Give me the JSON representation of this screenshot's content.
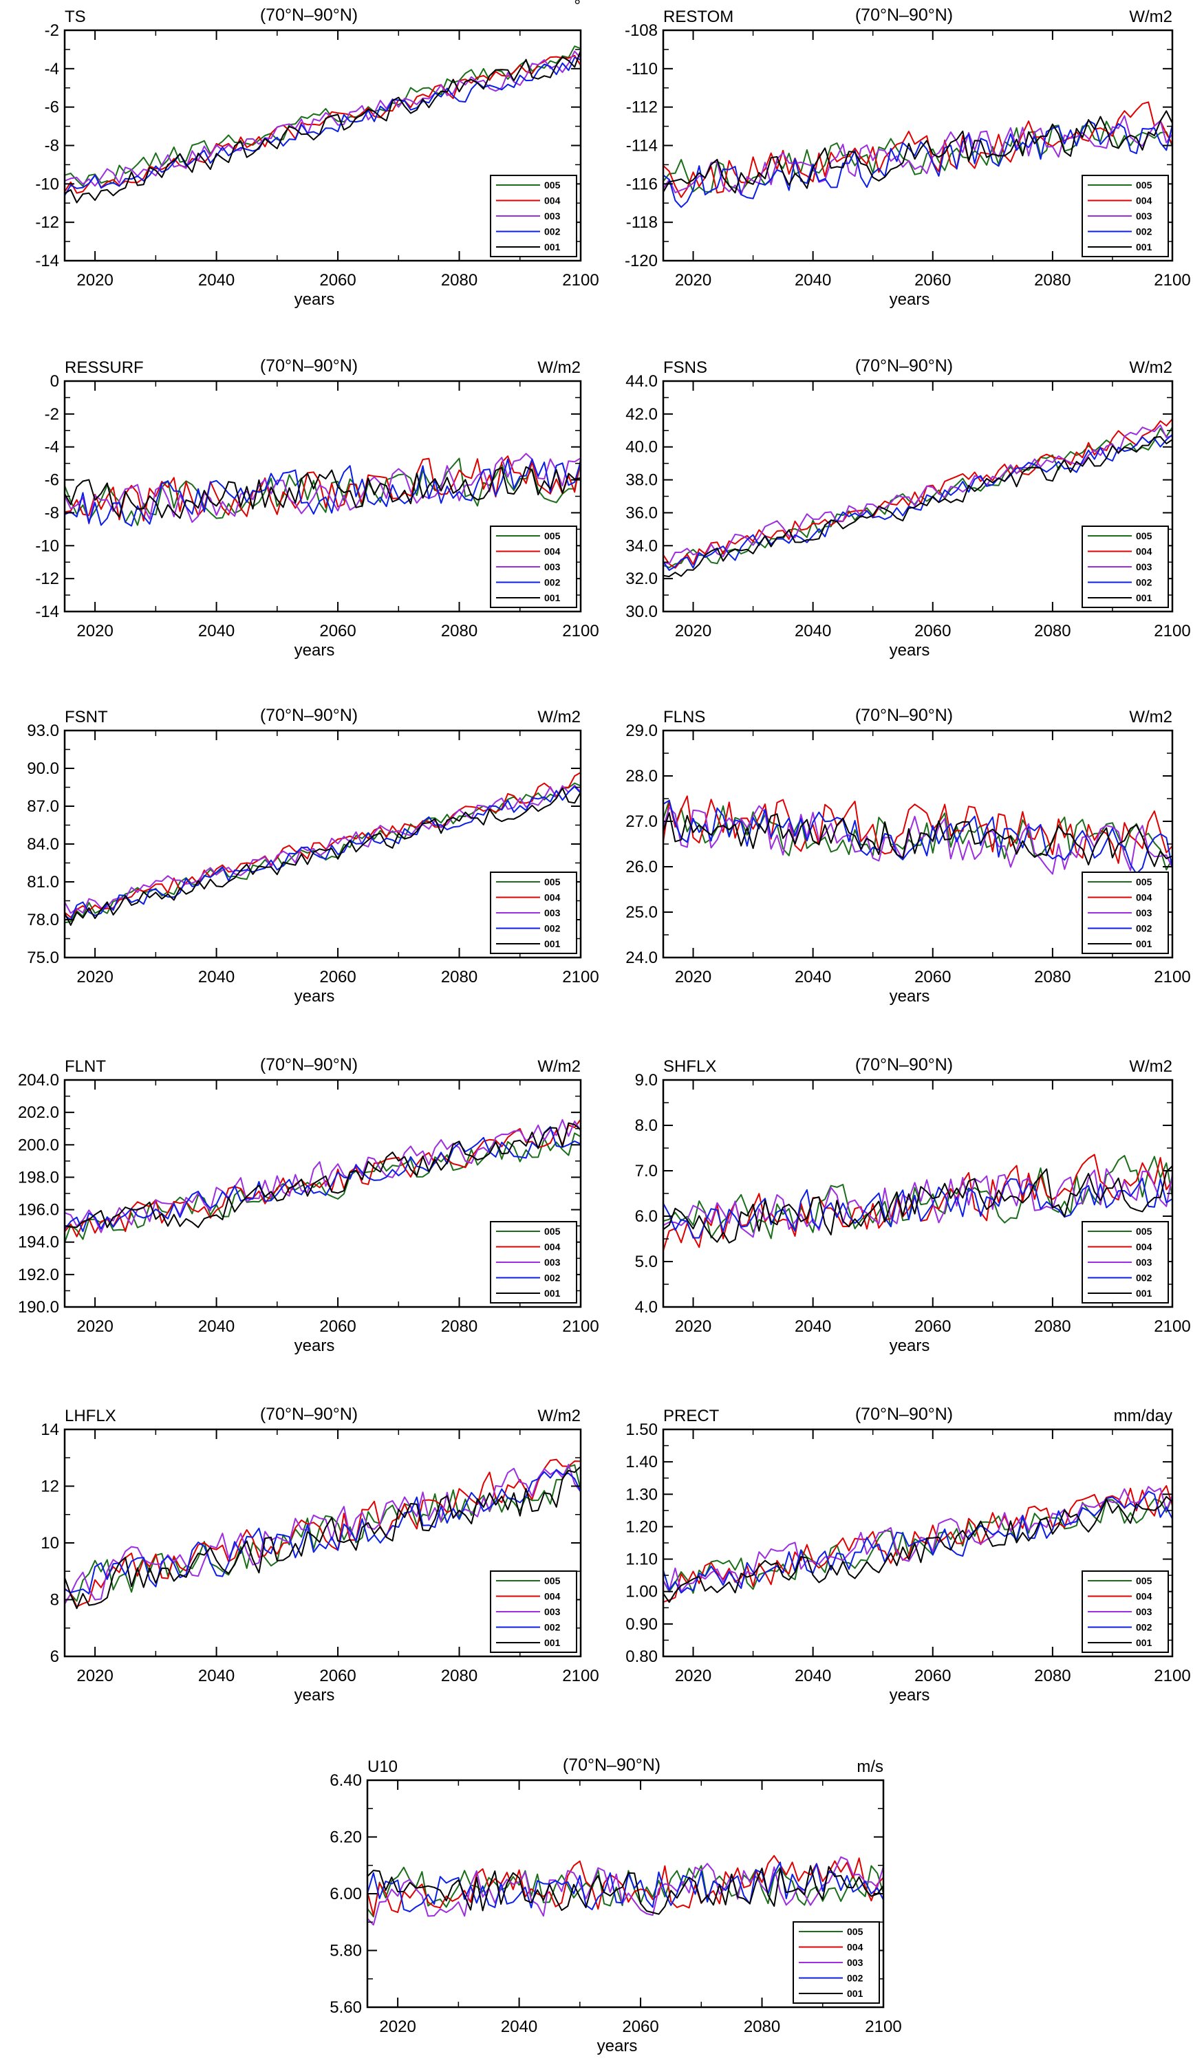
{
  "figure": {
    "legend_entries": [
      "005",
      "004",
      "003",
      "002",
      "001"
    ],
    "series_colors": {
      "005": "#1a6e1a",
      "004": "#e00000",
      "003": "#9d2de0",
      "002": "#0b1ee8",
      "001": "#000000"
    },
    "xlabel": "years",
    "region": "(70°N–90°N)"
  },
  "chart_data": [
    {
      "type": "line",
      "title": "TS",
      "subtitle": "(70°N–90°N)",
      "units": "°",
      "xlabel": "years",
      "xlim": [
        2015,
        2100
      ],
      "ylim": [
        -14,
        -2
      ],
      "xticks": [
        "2020",
        "2040",
        "2060",
        "2080",
        "2100"
      ],
      "yticks": [
        "-14",
        "-12",
        "-10",
        "-8",
        "-6",
        "-4",
        "-2"
      ],
      "series": [
        {
          "name": "005",
          "start": -10.0,
          "end": -3.2,
          "noise": 0.6,
          "seed": 11
        },
        {
          "name": "004",
          "start": -10.3,
          "end": -3.4,
          "noise": 0.6,
          "seed": 12
        },
        {
          "name": "003",
          "start": -10.2,
          "end": -3.5,
          "noise": 0.6,
          "seed": 13
        },
        {
          "name": "002",
          "start": -10.4,
          "end": -3.6,
          "noise": 0.6,
          "seed": 14
        },
        {
          "name": "001",
          "start": -10.8,
          "end": -3.3,
          "noise": 0.7,
          "seed": 15
        }
      ]
    },
    {
      "type": "line",
      "title": "RESTOM",
      "subtitle": "(70°N–90°N)",
      "units": "W/m2",
      "xlabel": "years",
      "xlim": [
        2015,
        2100
      ],
      "ylim": [
        -120,
        -108
      ],
      "xticks": [
        "2020",
        "2040",
        "2060",
        "2080",
        "2100"
      ],
      "yticks": [
        "-120",
        "-118",
        "-116",
        "-114",
        "-112",
        "-110",
        "-108"
      ],
      "series": [
        {
          "name": "005",
          "start": -115.8,
          "end": -113.2,
          "noise": 1.1,
          "seed": 21
        },
        {
          "name": "004",
          "start": -115.9,
          "end": -112.8,
          "noise": 1.2,
          "seed": 22
        },
        {
          "name": "003",
          "start": -116.0,
          "end": -113.0,
          "noise": 1.1,
          "seed": 23
        },
        {
          "name": "002",
          "start": -116.2,
          "end": -113.4,
          "noise": 1.2,
          "seed": 24
        },
        {
          "name": "001",
          "start": -116.0,
          "end": -113.1,
          "noise": 1.1,
          "seed": 25
        }
      ]
    },
    {
      "type": "line",
      "title": "RESSURF",
      "subtitle": "(70°N–90°N)",
      "units": "W/m2",
      "xlabel": "years",
      "xlim": [
        2015,
        2100
      ],
      "ylim": [
        -14,
        0
      ],
      "xticks": [
        "2020",
        "2040",
        "2060",
        "2080",
        "2100"
      ],
      "yticks": [
        "-14",
        "-12",
        "-10",
        "-8",
        "-6",
        "-4",
        "-2",
        "0"
      ],
      "series": [
        {
          "name": "005",
          "start": -7.6,
          "end": -5.8,
          "noise": 1.5,
          "seed": 31
        },
        {
          "name": "004",
          "start": -7.8,
          "end": -5.4,
          "noise": 1.5,
          "seed": 32
        },
        {
          "name": "003",
          "start": -7.9,
          "end": -5.6,
          "noise": 1.4,
          "seed": 33
        },
        {
          "name": "002",
          "start": -7.7,
          "end": -5.7,
          "noise": 1.5,
          "seed": 34
        },
        {
          "name": "001",
          "start": -7.5,
          "end": -5.9,
          "noise": 1.3,
          "seed": 35
        }
      ]
    },
    {
      "type": "line",
      "title": "FSNS",
      "subtitle": "(70°N–90°N)",
      "units": "W/m2",
      "xlabel": "years",
      "xlim": [
        2015,
        2100
      ],
      "ylim": [
        30.0,
        44.0
      ],
      "xticks": [
        "2020",
        "2040",
        "2060",
        "2080",
        "2100"
      ],
      "yticks": [
        "30.0",
        "32.0",
        "34.0",
        "36.0",
        "38.0",
        "40.0",
        "42.0",
        "44.0"
      ],
      "series": [
        {
          "name": "005",
          "start": 32.8,
          "end": 40.8,
          "noise": 0.7,
          "seed": 41
        },
        {
          "name": "004",
          "start": 32.9,
          "end": 41.2,
          "noise": 0.7,
          "seed": 42
        },
        {
          "name": "003",
          "start": 33.1,
          "end": 41.0,
          "noise": 0.7,
          "seed": 43
        },
        {
          "name": "002",
          "start": 32.6,
          "end": 40.6,
          "noise": 0.7,
          "seed": 44
        },
        {
          "name": "001",
          "start": 32.4,
          "end": 40.5,
          "noise": 0.7,
          "seed": 45
        }
      ]
    },
    {
      "type": "line",
      "title": "FSNT",
      "subtitle": "(70°N–90°N)",
      "units": "W/m2",
      "xlabel": "years",
      "xlim": [
        2015,
        2100
      ],
      "ylim": [
        75.0,
        93.0
      ],
      "xticks": [
        "2020",
        "2040",
        "2060",
        "2080",
        "2100"
      ],
      "yticks": [
        "75.0",
        "78.0",
        "81.0",
        "84.0",
        "87.0",
        "90.0",
        "93.0"
      ],
      "series": [
        {
          "name": "005",
          "start": 78.4,
          "end": 88.4,
          "noise": 0.8,
          "seed": 51
        },
        {
          "name": "004",
          "start": 78.6,
          "end": 88.9,
          "noise": 0.8,
          "seed": 52
        },
        {
          "name": "003",
          "start": 78.8,
          "end": 88.6,
          "noise": 0.8,
          "seed": 53
        },
        {
          "name": "002",
          "start": 78.5,
          "end": 88.2,
          "noise": 0.8,
          "seed": 54
        },
        {
          "name": "001",
          "start": 78.0,
          "end": 88.0,
          "noise": 0.9,
          "seed": 55
        }
      ]
    },
    {
      "type": "line",
      "title": "FLNS",
      "subtitle": "(70°N–90°N)",
      "units": "W/m2",
      "xlabel": "years",
      "xlim": [
        2015,
        2100
      ],
      "ylim": [
        24.0,
        29.0
      ],
      "xticks": [
        "2020",
        "2040",
        "2060",
        "2080",
        "2100"
      ],
      "yticks": [
        "24.0",
        "25.0",
        "26.0",
        "27.0",
        "28.0",
        "29.0"
      ],
      "series": [
        {
          "name": "005",
          "start": 27.0,
          "end": 26.4,
          "noise": 0.6,
          "seed": 61
        },
        {
          "name": "004",
          "start": 27.1,
          "end": 26.6,
          "noise": 0.65,
          "seed": 62
        },
        {
          "name": "003",
          "start": 26.9,
          "end": 26.3,
          "noise": 0.6,
          "seed": 63
        },
        {
          "name": "002",
          "start": 27.0,
          "end": 26.3,
          "noise": 0.55,
          "seed": 64
        },
        {
          "name": "001",
          "start": 26.9,
          "end": 26.4,
          "noise": 0.5,
          "seed": 65
        }
      ]
    },
    {
      "type": "line",
      "title": "FLNT",
      "subtitle": "(70°N–90°N)",
      "units": "W/m2",
      "xlabel": "years",
      "xlim": [
        2015,
        2100
      ],
      "ylim": [
        190.0,
        204.0
      ],
      "xticks": [
        "2020",
        "2040",
        "2060",
        "2080",
        "2100"
      ],
      "yticks": [
        "190.0",
        "192.0",
        "194.0",
        "196.0",
        "198.0",
        "200.0",
        "202.0",
        "204.0"
      ],
      "series": [
        {
          "name": "005",
          "start": 194.7,
          "end": 200.3,
          "noise": 1.0,
          "seed": 71
        },
        {
          "name": "004",
          "start": 194.6,
          "end": 200.8,
          "noise": 1.0,
          "seed": 72
        },
        {
          "name": "003",
          "start": 195.0,
          "end": 201.0,
          "noise": 1.0,
          "seed": 73
        },
        {
          "name": "002",
          "start": 194.9,
          "end": 200.6,
          "noise": 0.9,
          "seed": 74
        },
        {
          "name": "001",
          "start": 194.3,
          "end": 200.9,
          "noise": 1.1,
          "seed": 75
        }
      ]
    },
    {
      "type": "line",
      "title": "SHFLX",
      "subtitle": "(70°N–90°N)",
      "units": "W/m2",
      "xlabel": "years",
      "xlim": [
        2015,
        2100
      ],
      "ylim": [
        4.0,
        9.0
      ],
      "xticks": [
        "2020",
        "2040",
        "2060",
        "2080",
        "2100"
      ],
      "yticks": [
        "4.0",
        "5.0",
        "6.0",
        "7.0",
        "8.0",
        "9.0"
      ],
      "series": [
        {
          "name": "005",
          "start": 5.8,
          "end": 6.8,
          "noise": 0.6,
          "seed": 81
        },
        {
          "name": "004",
          "start": 5.7,
          "end": 6.9,
          "noise": 0.6,
          "seed": 82
        },
        {
          "name": "003",
          "start": 5.8,
          "end": 6.8,
          "noise": 0.6,
          "seed": 83
        },
        {
          "name": "002",
          "start": 5.9,
          "end": 6.6,
          "noise": 0.5,
          "seed": 84
        },
        {
          "name": "001",
          "start": 5.8,
          "end": 6.7,
          "noise": 0.55,
          "seed": 85
        }
      ]
    },
    {
      "type": "line",
      "title": "LHFLX",
      "subtitle": "(70°N–90°N)",
      "units": "W/m2",
      "xlabel": "years",
      "xlim": [
        2015,
        2100
      ],
      "ylim": [
        6,
        14
      ],
      "xticks": [
        "2020",
        "2040",
        "2060",
        "2080",
        "2100"
      ],
      "yticks": [
        "6",
        "8",
        "10",
        "12",
        "14"
      ],
      "series": [
        {
          "name": "005",
          "start": 8.4,
          "end": 12.2,
          "noise": 0.8,
          "seed": 91
        },
        {
          "name": "004",
          "start": 8.3,
          "end": 12.5,
          "noise": 0.8,
          "seed": 92
        },
        {
          "name": "003",
          "start": 8.5,
          "end": 12.4,
          "noise": 0.8,
          "seed": 93
        },
        {
          "name": "002",
          "start": 8.4,
          "end": 12.1,
          "noise": 0.75,
          "seed": 94
        },
        {
          "name": "001",
          "start": 8.2,
          "end": 12.0,
          "noise": 0.8,
          "seed": 95
        }
      ]
    },
    {
      "type": "line",
      "title": "PRECT",
      "subtitle": "(70°N–90°N)",
      "units": "mm/day",
      "xlabel": "years",
      "xlim": [
        2015,
        2100
      ],
      "ylim": [
        0.8,
        1.5
      ],
      "xticks": [
        "2020",
        "2040",
        "2060",
        "2080",
        "2100"
      ],
      "yticks": [
        "0.80",
        "0.90",
        "1.00",
        "1.10",
        "1.20",
        "1.30",
        "1.40",
        "1.50"
      ],
      "series": [
        {
          "name": "005",
          "start": 1.02,
          "end": 1.28,
          "noise": 0.06,
          "seed": 101
        },
        {
          "name": "004",
          "start": 1.01,
          "end": 1.3,
          "noise": 0.06,
          "seed": 102
        },
        {
          "name": "003",
          "start": 1.03,
          "end": 1.29,
          "noise": 0.06,
          "seed": 103
        },
        {
          "name": "002",
          "start": 1.02,
          "end": 1.27,
          "noise": 0.055,
          "seed": 104
        },
        {
          "name": "001",
          "start": 1.0,
          "end": 1.27,
          "noise": 0.06,
          "seed": 105
        }
      ]
    },
    {
      "type": "line",
      "title": "U10",
      "subtitle": "(70°N–90°N)",
      "units": "m/s",
      "xlabel": "years",
      "xlim": [
        2015,
        2100
      ],
      "ylim": [
        5.6,
        6.4
      ],
      "xticks": [
        "2020",
        "2040",
        "2060",
        "2080",
        "2100"
      ],
      "yticks": [
        "5.60",
        "5.80",
        "6.00",
        "6.20",
        "6.40"
      ],
      "series": [
        {
          "name": "005",
          "start": 6.0,
          "end": 6.05,
          "noise": 0.09,
          "seed": 111
        },
        {
          "name": "004",
          "start": 5.99,
          "end": 6.06,
          "noise": 0.09,
          "seed": 112
        },
        {
          "name": "003",
          "start": 5.98,
          "end": 6.05,
          "noise": 0.09,
          "seed": 113
        },
        {
          "name": "002",
          "start": 6.0,
          "end": 6.04,
          "noise": 0.085,
          "seed": 114
        },
        {
          "name": "001",
          "start": 5.99,
          "end": 6.05,
          "noise": 0.09,
          "seed": 115
        }
      ]
    }
  ]
}
